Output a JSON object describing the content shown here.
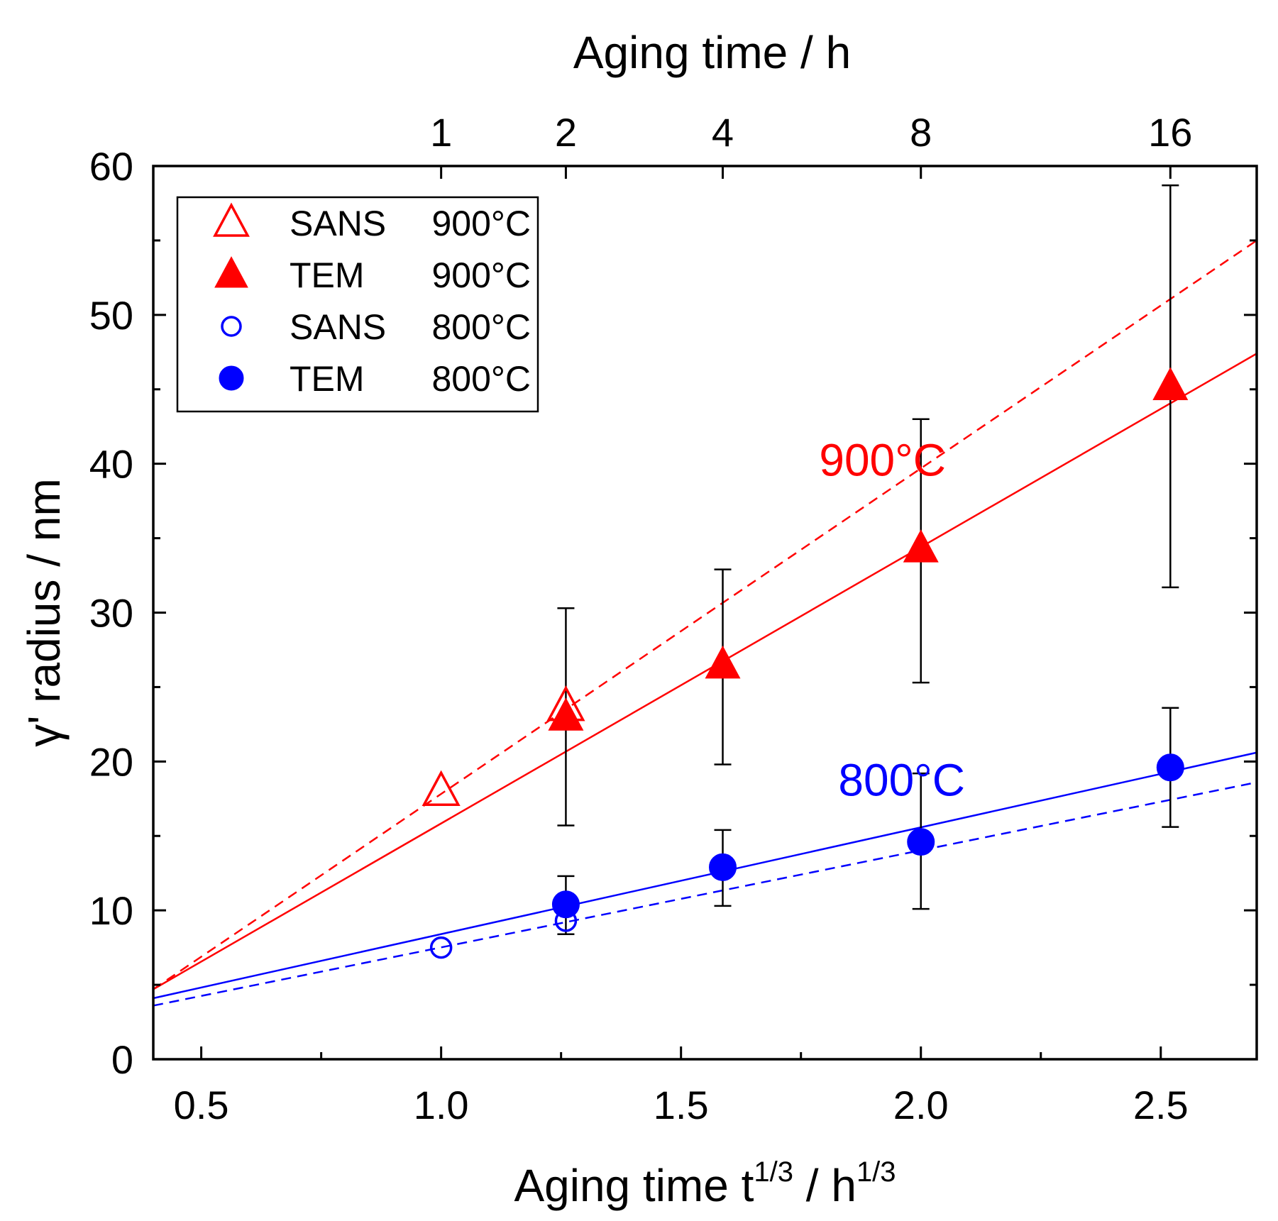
{
  "chart_data": {
    "type": "scatter",
    "title": "",
    "xlabel": {
      "main": "Aging time t",
      "sup1": "1/3",
      "mid": " / h",
      "sup2": "1/3"
    },
    "ylabel": "γ' radius / nm",
    "top_xlabel": "Aging time / h",
    "xlim": [
      0.4,
      2.7
    ],
    "ylim": [
      0,
      60
    ],
    "x_ticks": [
      0.5,
      1.0,
      1.5,
      2.0,
      2.5
    ],
    "x_tick_labels": [
      "0.5",
      "1.0",
      "1.5",
      "2.0",
      "2.5"
    ],
    "y_ticks": [
      0,
      10,
      20,
      30,
      40,
      50,
      60
    ],
    "y_tick_labels": [
      "0",
      "10",
      "20",
      "30",
      "40",
      "50",
      "60"
    ],
    "top_ticks": [
      {
        "label": "1",
        "x": 1.0
      },
      {
        "label": "2",
        "x": 1.26
      },
      {
        "label": "4",
        "x": 1.587
      },
      {
        "label": "8",
        "x": 2.0
      },
      {
        "label": "16",
        "x": 2.52
      }
    ],
    "legend_position": "top-left",
    "series": [
      {
        "name": "SANS 900°C",
        "legend_name": "SANS",
        "legend_temp": "900°C",
        "marker": "triangle-open",
        "color": "#ff0000",
        "points": [
          {
            "x": 1.0,
            "y": 18.0
          },
          {
            "x": 1.26,
            "y": 23.7
          }
        ]
      },
      {
        "name": "TEM 900°C",
        "legend_name": "TEM",
        "legend_temp": "900°C",
        "marker": "triangle-filled",
        "color": "#ff0000",
        "points": [
          {
            "x": 1.26,
            "y": 23.0,
            "err_low": 15.7,
            "err_high": 30.3
          },
          {
            "x": 1.587,
            "y": 26.5,
            "err_low": 19.8,
            "err_high": 32.9
          },
          {
            "x": 2.0,
            "y": 34.3,
            "err_low": 25.3,
            "err_high": 43.0
          },
          {
            "x": 2.52,
            "y": 45.2,
            "err_low": 31.7,
            "err_high": 58.7
          }
        ]
      },
      {
        "name": "SANS 800°C",
        "legend_name": "SANS",
        "legend_temp": "800°C",
        "marker": "circle-open",
        "color": "#0000ff",
        "points": [
          {
            "x": 1.0,
            "y": 7.5
          },
          {
            "x": 1.26,
            "y": 9.3
          }
        ]
      },
      {
        "name": "TEM 800°C",
        "legend_name": "TEM",
        "legend_temp": "800°C",
        "marker": "circle-filled",
        "color": "#0000ff",
        "points": [
          {
            "x": 1.26,
            "y": 10.4,
            "err_low": 8.4,
            "err_high": 12.3
          },
          {
            "x": 1.587,
            "y": 12.9,
            "err_low": 10.3,
            "err_high": 15.4
          },
          {
            "x": 2.0,
            "y": 14.6,
            "err_low": 10.1,
            "err_high": 19.2
          },
          {
            "x": 2.52,
            "y": 19.6,
            "err_low": 15.6,
            "err_high": 23.6
          }
        ]
      }
    ],
    "fit_lines": [
      {
        "name": "SANS 900°C fit",
        "style": "dashed",
        "color": "#ff0000",
        "x0": 0.4,
        "y0": 4.7,
        "x1": 2.7,
        "y1": 55.0
      },
      {
        "name": "TEM 900°C fit",
        "style": "solid",
        "color": "#ff0000",
        "x0": 0.4,
        "y0": 4.7,
        "x1": 2.7,
        "y1": 47.4
      },
      {
        "name": "TEM 800°C fit",
        "style": "solid",
        "color": "#0000ff",
        "x0": 0.4,
        "y0": 4.1,
        "x1": 2.7,
        "y1": 20.6
      },
      {
        "name": "SANS 800°C fit",
        "style": "dashed",
        "color": "#0000ff",
        "x0": 0.4,
        "y0": 3.6,
        "x1": 2.7,
        "y1": 18.6
      }
    ],
    "annotations": [
      {
        "text": "900°C",
        "color": "#ff0000",
        "x": 1.92,
        "y": 39.2
      },
      {
        "text": "800°C",
        "color": "#0000ff",
        "x": 1.96,
        "y": 17.7
      }
    ]
  }
}
